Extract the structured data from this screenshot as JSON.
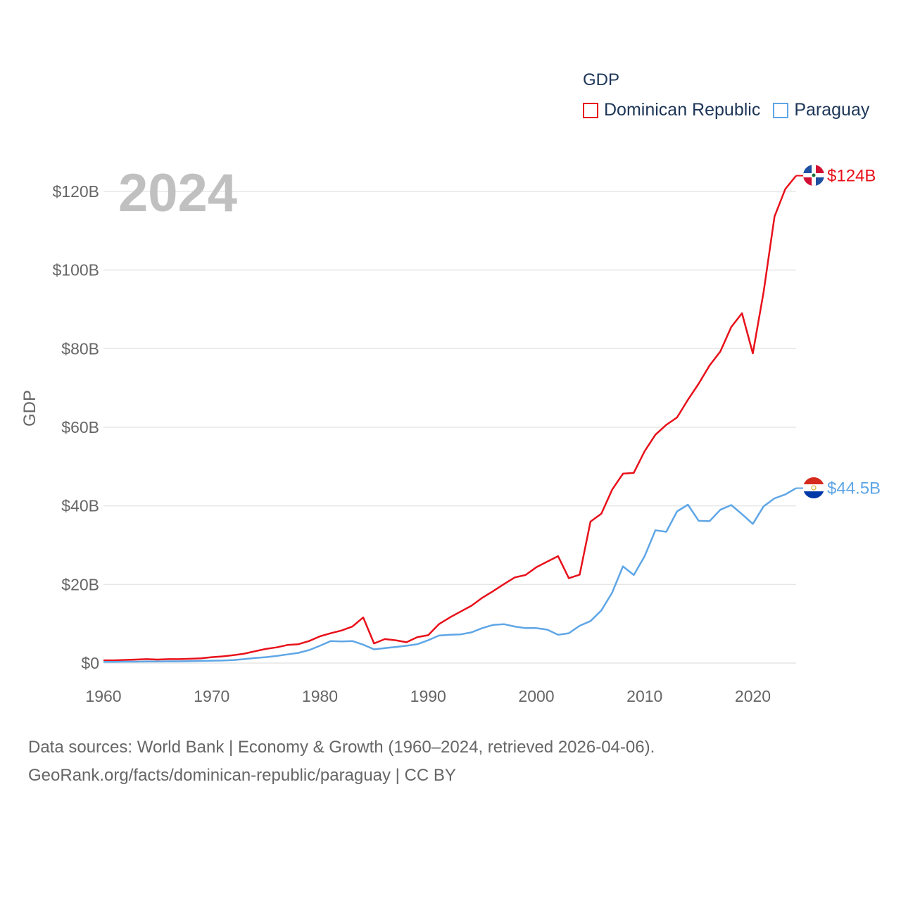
{
  "legend": {
    "title": "GDP",
    "items": [
      {
        "label": "Dominican Republic",
        "color": "#e8101a"
      },
      {
        "label": "Paraguay",
        "color": "#5fa6e6"
      }
    ]
  },
  "year_label": "2024",
  "footer": {
    "line1": "Data sources: World Bank | Economy & Growth (1960–2024, retrieved 2026-04-06).",
    "line2": "GeoRank.org/facts/dominican-republic/paraguay | CC BY"
  },
  "chart_data": {
    "type": "line",
    "title": "GDP",
    "xlabel": "",
    "ylabel": "GDP",
    "xlim": [
      1960,
      2024
    ],
    "ylim": [
      0,
      124
    ],
    "grid": true,
    "legend_position": "top-right",
    "x_ticks": [
      1960,
      1970,
      1980,
      1990,
      2000,
      2010,
      2020
    ],
    "y_ticks": [
      0,
      20,
      40,
      60,
      80,
      100,
      120
    ],
    "y_tick_labels": [
      "$0",
      "$20B",
      "$40B",
      "$60B",
      "$80B",
      "$100B",
      "$120B"
    ],
    "x": [
      1960,
      1961,
      1962,
      1963,
      1964,
      1965,
      1966,
      1967,
      1968,
      1969,
      1970,
      1971,
      1972,
      1973,
      1974,
      1975,
      1976,
      1977,
      1978,
      1979,
      1980,
      1981,
      1982,
      1983,
      1984,
      1985,
      1986,
      1987,
      1988,
      1989,
      1990,
      1991,
      1992,
      1993,
      1994,
      1995,
      1996,
      1997,
      1998,
      1999,
      2000,
      2001,
      2002,
      2003,
      2004,
      2005,
      2006,
      2007,
      2008,
      2009,
      2010,
      2011,
      2012,
      2013,
      2014,
      2015,
      2016,
      2017,
      2018,
      2019,
      2020,
      2021,
      2022,
      2023,
      2024
    ],
    "series": [
      {
        "name": "Dominican Republic",
        "color": "#e8101a",
        "end_label": "$124B",
        "values": [
          0.7,
          0.7,
          0.8,
          0.9,
          1.0,
          0.9,
          1.0,
          1.0,
          1.1,
          1.2,
          1.5,
          1.7,
          2.0,
          2.4,
          3.0,
          3.6,
          4.0,
          4.6,
          4.8,
          5.6,
          6.8,
          7.6,
          8.3,
          9.3,
          11.6,
          5.0,
          6.1,
          5.8,
          5.3,
          6.6,
          7.1,
          9.9,
          11.6,
          13.1,
          14.6,
          16.6,
          18.3,
          20.1,
          21.8,
          22.4,
          24.4,
          25.8,
          27.2,
          21.6,
          22.5,
          36.0,
          38.0,
          44.1,
          48.2,
          48.4,
          53.9,
          58.1,
          60.6,
          62.5,
          67.0,
          71.1,
          75.7,
          79.3,
          85.5,
          89.0,
          78.8,
          94.5,
          113.6,
          120.6,
          124.0
        ]
      },
      {
        "name": "Paraguay",
        "color": "#5fa6e6",
        "end_label": "$44.5B",
        "values": [
          0.3,
          0.3,
          0.35,
          0.35,
          0.4,
          0.4,
          0.45,
          0.45,
          0.5,
          0.55,
          0.6,
          0.65,
          0.75,
          1.0,
          1.3,
          1.5,
          1.8,
          2.2,
          2.6,
          3.3,
          4.4,
          5.6,
          5.5,
          5.6,
          4.7,
          3.5,
          3.8,
          4.1,
          4.4,
          4.8,
          5.8,
          7.0,
          7.2,
          7.3,
          7.8,
          8.9,
          9.7,
          9.9,
          9.3,
          8.9,
          8.9,
          8.5,
          7.2,
          7.6,
          9.5,
          10.7,
          13.4,
          17.9,
          24.6,
          22.4,
          27.2,
          33.8,
          33.4,
          38.6,
          40.3,
          36.2,
          36.1,
          39.0,
          40.2,
          37.9,
          35.4,
          39.9,
          41.9,
          42.9,
          44.5
        ]
      }
    ]
  }
}
